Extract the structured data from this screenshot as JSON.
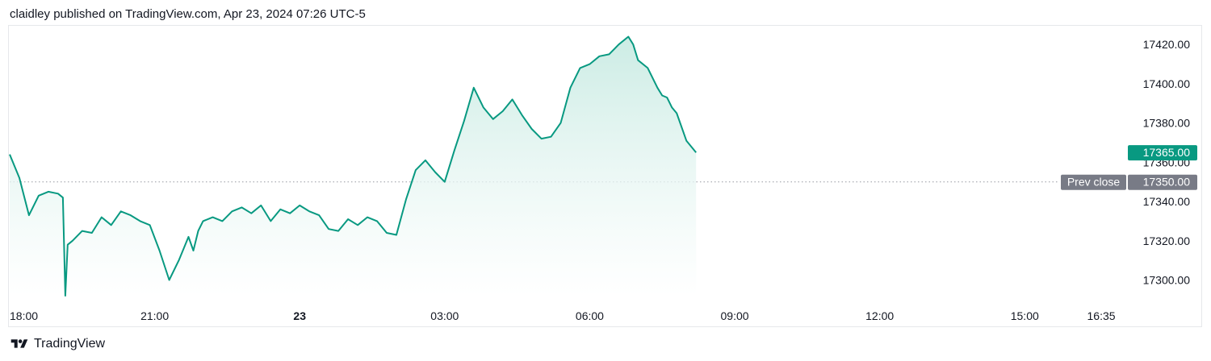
{
  "header": {
    "published": "claidley published on TradingView.com, Apr 23, 2024 07:26 UTC-5"
  },
  "footer": {
    "brand": "TradingView"
  },
  "colors": {
    "line": "#089981",
    "fill_top": "#c9ebe3",
    "last_price_bg": "#089981",
    "prev_close_bg": "#787b86",
    "grid_dotted": "#9598a1"
  },
  "icons": {
    "logo": "tradingview-logo-icon"
  },
  "chart_data": {
    "type": "area",
    "ylim": [
      17290,
      17432
    ],
    "yticks": [
      17300,
      17320,
      17340,
      17360,
      17380,
      17400,
      17420
    ],
    "ytick_labels": [
      "17300.00",
      "17320.00",
      "17340.00",
      "17360.00",
      "17380.00",
      "17400.00",
      "17420.00"
    ],
    "xticks": [
      {
        "label": "18:00",
        "h": 0,
        "bold": false
      },
      {
        "label": "21:00",
        "h": 3,
        "bold": false
      },
      {
        "label": "23",
        "h": 6,
        "bold": true
      },
      {
        "label": "03:00",
        "h": 9,
        "bold": false
      },
      {
        "label": "06:00",
        "h": 12,
        "bold": false
      },
      {
        "label": "09:00",
        "h": 15,
        "bold": false
      },
      {
        "label": "12:00",
        "h": 18,
        "bold": false
      },
      {
        "label": "15:00",
        "h": 21,
        "bold": false
      },
      {
        "label": "16:35",
        "h": 22.583,
        "bold": false
      }
    ],
    "last_price": {
      "label": "17365.00",
      "value": 17365.0
    },
    "prev_close": {
      "caption": "Prev close",
      "label": "17350.00",
      "value": 17350.0
    },
    "series": [
      {
        "x_hours_since_1800": [
          0,
          0.2,
          0.4,
          0.6,
          0.8,
          1.0,
          1.1,
          1.15,
          1.2,
          1.3,
          1.5,
          1.7,
          1.9,
          2.1,
          2.3,
          2.5,
          2.7,
          2.9,
          3.1,
          3.3,
          3.5,
          3.7,
          3.8,
          3.9,
          4.0,
          4.2,
          4.4,
          4.6,
          4.8,
          5.0,
          5.2,
          5.4,
          5.6,
          5.8,
          6.0,
          6.2,
          6.4,
          6.6,
          6.8,
          7.0,
          7.2,
          7.4,
          7.6,
          7.8,
          8.0,
          8.2,
          8.4,
          8.6,
          8.8,
          9.0,
          9.2,
          9.4,
          9.6,
          9.8,
          10.0,
          10.2,
          10.4,
          10.6,
          10.8,
          11.0,
          11.2,
          11.4,
          11.6,
          11.8,
          12.0,
          12.2,
          12.4,
          12.6,
          12.8,
          12.9,
          13.0,
          13.2,
          13.4,
          13.5,
          13.6,
          13.7,
          13.8,
          14.0,
          14.2
        ],
        "values": [
          17364,
          17352,
          17333,
          17343,
          17345,
          17344,
          17342,
          17292,
          17318,
          17320,
          17325,
          17324,
          17332,
          17328,
          17335,
          17333,
          17330,
          17328,
          17315,
          17300,
          17310,
          17322,
          17315,
          17325,
          17330,
          17332,
          17330,
          17335,
          17337,
          17334,
          17338,
          17330,
          17336,
          17334,
          17338,
          17335,
          17333,
          17326,
          17325,
          17331,
          17328,
          17332,
          17330,
          17324,
          17323,
          17341,
          17356,
          17361,
          17355,
          17350,
          17366,
          17381,
          17398,
          17388,
          17382,
          17386,
          17392,
          17384,
          17377,
          17372,
          17373,
          17380,
          17398,
          17408,
          17410,
          17414,
          17415,
          17420,
          17424,
          17420,
          17412,
          17408,
          17398,
          17394,
          17393,
          17388,
          17385,
          17371,
          17365
        ]
      }
    ]
  }
}
